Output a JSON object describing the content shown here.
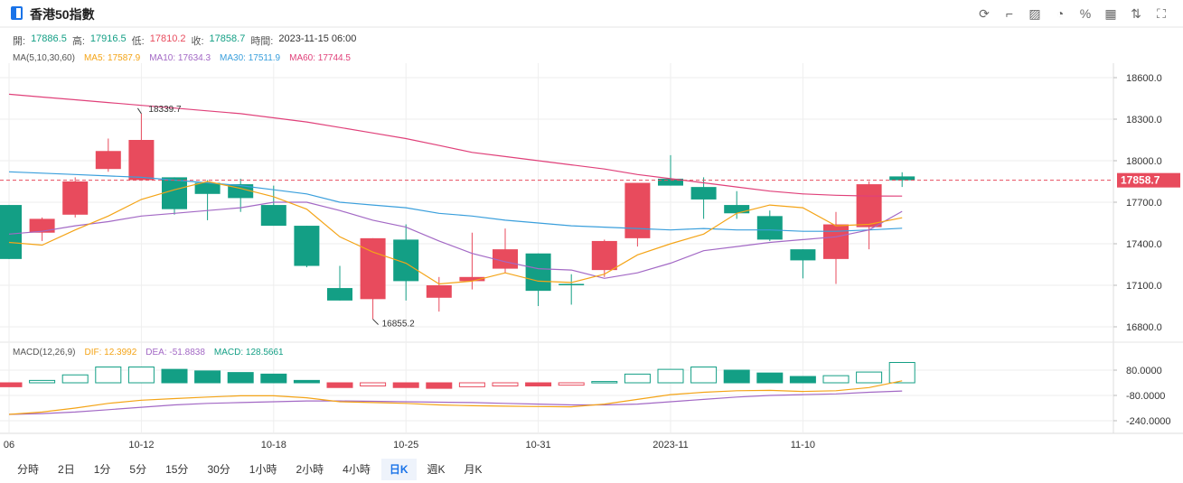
{
  "header": {
    "title": "香港50指數",
    "tools": [
      {
        "name": "refresh-icon",
        "glyph": "⟳"
      },
      {
        "name": "draw-icon",
        "glyph": "⌐"
      },
      {
        "name": "indicator-icon",
        "glyph": "▨"
      },
      {
        "name": "compare-icon",
        "glyph": "◔"
      },
      {
        "name": "percent-icon",
        "glyph": "%"
      },
      {
        "name": "layout-icon",
        "glyph": "▦"
      },
      {
        "name": "sort-icon",
        "glyph": "⇅"
      },
      {
        "name": "fullscreen-icon",
        "glyph": "⛶"
      }
    ]
  },
  "ohlc": {
    "open_label": "開:",
    "open": "17886.5",
    "high_label": "高:",
    "high": "17916.5",
    "low_label": "低:",
    "low": "17810.2",
    "close_label": "收:",
    "close": "17858.7",
    "time_label": "時間:",
    "time": "2023-11-15 06:00"
  },
  "ma_legend": {
    "title": "MA(5,10,30,60)",
    "ma5": "MA5: 17587.9",
    "ma10": "MA10: 17634.3",
    "ma30": "MA30: 17511.9",
    "ma60": "MA60: 17744.5"
  },
  "macd_legend": {
    "title": "MACD(12,26,9)",
    "dif": "DIF: 12.3992",
    "dea": "DEA: -51.8838",
    "macd": "MACD: 128.5661"
  },
  "colors": {
    "up": "#e84b5d",
    "down": "#139f85",
    "ma5": "#f4a417",
    "ma10": "#a369c5",
    "ma30": "#3a9fdc",
    "ma60": "#e0417a",
    "grid": "#eeeeee"
  },
  "chart_data": {
    "type": "candlestick",
    "price_axis": {
      "ticks": [
        "18600.0",
        "18300.0",
        "18000.0",
        "17700.0",
        "17400.0",
        "17100.0",
        "16800.0"
      ],
      "ylim": [
        16760,
        18710
      ]
    },
    "macd_axis": {
      "ticks": [
        "80.0000",
        "-80.0000",
        "-240.0000"
      ],
      "ylim": [
        -280,
        160
      ]
    },
    "x_labels": [
      "06",
      "10-12",
      "10-18",
      "10-25",
      "10-31",
      "2023-11",
      "11-10"
    ],
    "current_price_label": "17858.7",
    "high_annotation": "18339.7",
    "low_annotation": "16855.2",
    "candles": [
      {
        "o": 17680,
        "c": 17290,
        "h": 17680,
        "l": 17290
      },
      {
        "o": 17480,
        "c": 17580,
        "h": 17590,
        "l": 17420
      },
      {
        "o": 17610,
        "c": 17850,
        "h": 17880,
        "l": 17590
      },
      {
        "o": 17940,
        "c": 18070,
        "h": 18160,
        "l": 17920
      },
      {
        "o": 17860,
        "c": 18150,
        "h": 18340,
        "l": 17860
      },
      {
        "o": 17880,
        "c": 17650,
        "h": 17880,
        "l": 17610
      },
      {
        "o": 17840,
        "c": 17760,
        "h": 17860,
        "l": 17570
      },
      {
        "o": 17830,
        "c": 17730,
        "h": 17870,
        "l": 17630
      },
      {
        "o": 17680,
        "c": 17530,
        "h": 17820,
        "l": 17530
      },
      {
        "o": 17530,
        "c": 17240,
        "h": 17530,
        "l": 17230
      },
      {
        "o": 17080,
        "c": 16990,
        "h": 17240,
        "l": 16990
      },
      {
        "o": 17000,
        "c": 17440,
        "h": 17440,
        "l": 16855
      },
      {
        "o": 17430,
        "c": 17130,
        "h": 17540,
        "l": 16990
      },
      {
        "o": 17010,
        "c": 17100,
        "h": 17160,
        "l": 16910
      },
      {
        "o": 17130,
        "c": 17160,
        "h": 17480,
        "l": 17070
      },
      {
        "o": 17220,
        "c": 17360,
        "h": 17510,
        "l": 17190
      },
      {
        "o": 17330,
        "c": 17060,
        "h": 17330,
        "l": 16950
      },
      {
        "o": 17110,
        "c": 17100,
        "h": 17180,
        "l": 16960
      },
      {
        "o": 17210,
        "c": 17420,
        "h": 17430,
        "l": 17160
      },
      {
        "o": 17440,
        "c": 17840,
        "h": 17840,
        "l": 17380
      },
      {
        "o": 17870,
        "c": 17820,
        "h": 18040,
        "l": 17820
      },
      {
        "o": 17810,
        "c": 17720,
        "h": 17880,
        "l": 17580
      },
      {
        "o": 17680,
        "c": 17620,
        "h": 17780,
        "l": 17580
      },
      {
        "o": 17600,
        "c": 17430,
        "h": 17640,
        "l": 17420
      },
      {
        "o": 17360,
        "c": 17280,
        "h": 17360,
        "l": 17150
      },
      {
        "o": 17290,
        "c": 17540,
        "h": 17630,
        "l": 17110
      },
      {
        "o": 17520,
        "c": 17830,
        "h": 17850,
        "l": 17360
      },
      {
        "o": 17886.5,
        "c": 17858.7,
        "h": 17916.5,
        "l": 17810.2
      }
    ],
    "ma5": [
      17410,
      17390,
      17500,
      17600,
      17720,
      17790,
      17850,
      17800,
      17740,
      17650,
      17450,
      17340,
      17260,
      17110,
      17130,
      17190,
      17130,
      17120,
      17180,
      17320,
      17400,
      17470,
      17620,
      17680,
      17660,
      17530,
      17540,
      17588
    ],
    "ma10": [
      17470,
      17490,
      17530,
      17560,
      17600,
      17620,
      17640,
      17660,
      17700,
      17700,
      17640,
      17570,
      17520,
      17420,
      17330,
      17270,
      17220,
      17210,
      17150,
      17190,
      17260,
      17350,
      17380,
      17410,
      17430,
      17450,
      17500,
      17634
    ],
    "ma30": [
      17920,
      17910,
      17900,
      17890,
      17880,
      17860,
      17840,
      17820,
      17790,
      17760,
      17700,
      17680,
      17660,
      17620,
      17600,
      17570,
      17550,
      17530,
      17520,
      17510,
      17500,
      17510,
      17500,
      17500,
      17490,
      17490,
      17500,
      17512
    ],
    "ma60": [
      18480,
      18460,
      18440,
      18420,
      18400,
      18380,
      18360,
      18340,
      18310,
      18280,
      18240,
      18200,
      18160,
      18110,
      18060,
      18030,
      18000,
      17970,
      17940,
      17900,
      17870,
      17840,
      17810,
      17780,
      17760,
      17750,
      17745,
      17744.5
    ],
    "macd": [
      -25,
      15,
      50,
      100,
      100,
      85,
      75,
      65,
      55,
      15,
      -30,
      -20,
      -30,
      -35,
      -25,
      -20,
      -20,
      -15,
      8,
      55,
      85,
      100,
      80,
      62,
      40,
      45,
      68,
      128.6
    ],
    "dif": [
      -200,
      -185,
      -160,
      -130,
      -110,
      -100,
      -90,
      -82,
      -82,
      -95,
      -120,
      -125,
      -130,
      -140,
      -145,
      -148,
      -150,
      -152,
      -135,
      -105,
      -75,
      -60,
      -50,
      -48,
      -55,
      -50,
      -30,
      12.4
    ],
    "dea": [
      -200,
      -195,
      -185,
      -170,
      -155,
      -140,
      -130,
      -125,
      -120,
      -115,
      -115,
      -117,
      -120,
      -123,
      -125,
      -130,
      -135,
      -140,
      -140,
      -135,
      -120,
      -105,
      -90,
      -80,
      -75,
      -70,
      -60,
      -51.9
    ]
  },
  "periods": [
    "分時",
    "2日",
    "1分",
    "5分",
    "15分",
    "30分",
    "1小時",
    "2小時",
    "4小時",
    "日K",
    "週K",
    "月K"
  ],
  "active_period": "日K"
}
